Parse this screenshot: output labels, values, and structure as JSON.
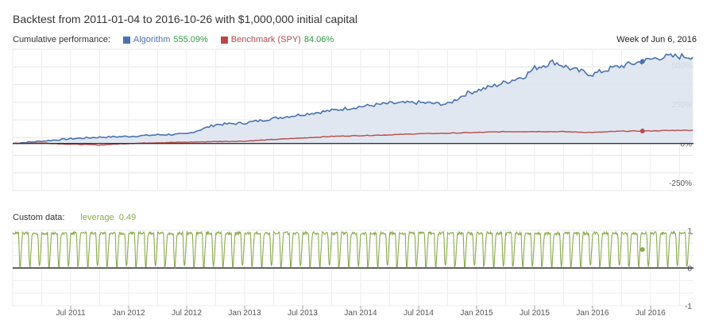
{
  "title": "Backtest from 2011-01-04 to 2016-10-26 with $1,000,000 initial capital",
  "header": {
    "label": "Cumulative performance:",
    "algorithm_label": "Algorithm",
    "algorithm_value": "555.09%",
    "benchmark_label": "Benchmark (SPY)",
    "benchmark_value": "84.06%",
    "week": "Week of Jun 6, 2016"
  },
  "custom": {
    "label": "Custom data:",
    "series_label": "leverage",
    "series_value": "0.49"
  },
  "colors": {
    "algorithm": "#4a72b0",
    "benchmark": "#b94a48",
    "leverage": "#8aab4c",
    "green_value": "#2e9a3f",
    "area_fill": "#dde4ef"
  },
  "chart_data": [
    {
      "type": "area",
      "y_unit": "%",
      "ylim": [
        -300,
        600
      ],
      "y_ticks": [
        500,
        250,
        0,
        -250
      ],
      "y_tick_labels": [
        "500%",
        "250%",
        "0%",
        "-250%"
      ],
      "grid": true,
      "x_ticks": [
        "Jul 2011",
        "Jan 2012",
        "Jul 2012",
        "Jan 2013",
        "Jul 2013",
        "Jan 2014",
        "Jul 2014",
        "Jan 2015",
        "Jul 2015",
        "Jan 2016",
        "Jul 2016"
      ],
      "series": [
        {
          "name": "Algorithm",
          "x": [
            "2011-01",
            "2011-04",
            "2011-07",
            "2011-10",
            "2012-01",
            "2012-04",
            "2012-07",
            "2012-10",
            "2013-01",
            "2013-04",
            "2013-07",
            "2013-10",
            "2014-01",
            "2014-04",
            "2014-07",
            "2014-10",
            "2014-12",
            "2015-03",
            "2015-06",
            "2015-07",
            "2015-09",
            "2015-11",
            "2016-01",
            "2016-03",
            "2016-06",
            "2016-08",
            "2016-10"
          ],
          "values": [
            0,
            15,
            30,
            40,
            45,
            55,
            60,
            120,
            130,
            160,
            185,
            210,
            235,
            255,
            260,
            250,
            320,
            370,
            430,
            480,
            520,
            470,
            440,
            480,
            520,
            550,
            555
          ]
        },
        {
          "name": "Benchmark (SPY)",
          "x": [
            "2011-01",
            "2011-04",
            "2011-07",
            "2011-10",
            "2012-01",
            "2012-04",
            "2012-07",
            "2012-10",
            "2013-01",
            "2013-04",
            "2013-07",
            "2013-10",
            "2014-01",
            "2014-04",
            "2014-07",
            "2014-10",
            "2015-01",
            "2015-04",
            "2015-07",
            "2015-10",
            "2016-01",
            "2016-04",
            "2016-07",
            "2016-10"
          ],
          "values": [
            0,
            3,
            -5,
            -10,
            0,
            5,
            8,
            12,
            15,
            25,
            35,
            45,
            50,
            55,
            62,
            65,
            70,
            75,
            76,
            75,
            70,
            78,
            80,
            84
          ]
        }
      ]
    },
    {
      "type": "line",
      "ylim": [
        -1,
        1
      ],
      "y_ticks": [
        1,
        0,
        -1
      ],
      "y_tick_labels": [
        "1",
        "0",
        "-1"
      ],
      "series": [
        {
          "name": "leverage",
          "last": 0.49
        }
      ]
    }
  ]
}
